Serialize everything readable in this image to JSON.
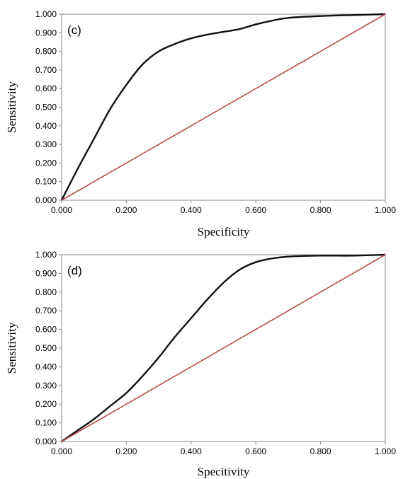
{
  "colors": {
    "roc": "#111111",
    "reference": "#b5504b",
    "frame": "#888888"
  },
  "chart_data": [
    {
      "type": "line",
      "panel_label": "(c)",
      "xlabel": "Specificity",
      "ylabel": "Sensitivity",
      "xlim": [
        0,
        1
      ],
      "ylim": [
        0,
        1
      ],
      "grid": false,
      "xticks": [
        "0.000",
        "0.200",
        "0.400",
        "0.600",
        "0.800",
        "1.000"
      ],
      "yticks": [
        "0.000",
        "0.100",
        "0.200",
        "0.300",
        "0.400",
        "0.500",
        "0.600",
        "0.700",
        "0.800",
        "0.900",
        "1.000"
      ],
      "series": [
        {
          "role": "roc",
          "x": [
            0.0,
            0.05,
            0.1,
            0.15,
            0.2,
            0.25,
            0.3,
            0.35,
            0.4,
            0.45,
            0.5,
            0.55,
            0.6,
            0.65,
            0.7,
            0.8,
            0.9,
            1.0
          ],
          "y": [
            0.0,
            0.17,
            0.33,
            0.49,
            0.62,
            0.73,
            0.8,
            0.84,
            0.87,
            0.89,
            0.905,
            0.92,
            0.945,
            0.965,
            0.98,
            0.99,
            0.995,
            1.0
          ]
        },
        {
          "role": "reference",
          "x": [
            0,
            1
          ],
          "y": [
            0,
            1
          ]
        }
      ]
    },
    {
      "type": "line",
      "panel_label": "(d)",
      "xlabel": "Specitivity",
      "ylabel": "Sensitivity",
      "xlim": [
        0,
        1
      ],
      "ylim": [
        0,
        1
      ],
      "grid": false,
      "xticks": [
        "0.000",
        "0.200",
        "0.400",
        "0.600",
        "0.800",
        "1.000"
      ],
      "yticks": [
        "0.000",
        "0.100",
        "0.200",
        "0.300",
        "0.400",
        "0.500",
        "0.600",
        "0.700",
        "0.800",
        "0.900",
        "1.000"
      ],
      "series": [
        {
          "role": "roc",
          "x": [
            0.0,
            0.05,
            0.1,
            0.15,
            0.2,
            0.25,
            0.3,
            0.35,
            0.4,
            0.45,
            0.5,
            0.55,
            0.6,
            0.65,
            0.7,
            0.8,
            0.9,
            1.0
          ],
          "y": [
            0.0,
            0.06,
            0.12,
            0.19,
            0.26,
            0.35,
            0.45,
            0.56,
            0.66,
            0.76,
            0.85,
            0.92,
            0.96,
            0.98,
            0.99,
            0.995,
            0.995,
            1.0
          ]
        },
        {
          "role": "reference",
          "x": [
            0,
            1
          ],
          "y": [
            0,
            1
          ]
        }
      ]
    }
  ]
}
